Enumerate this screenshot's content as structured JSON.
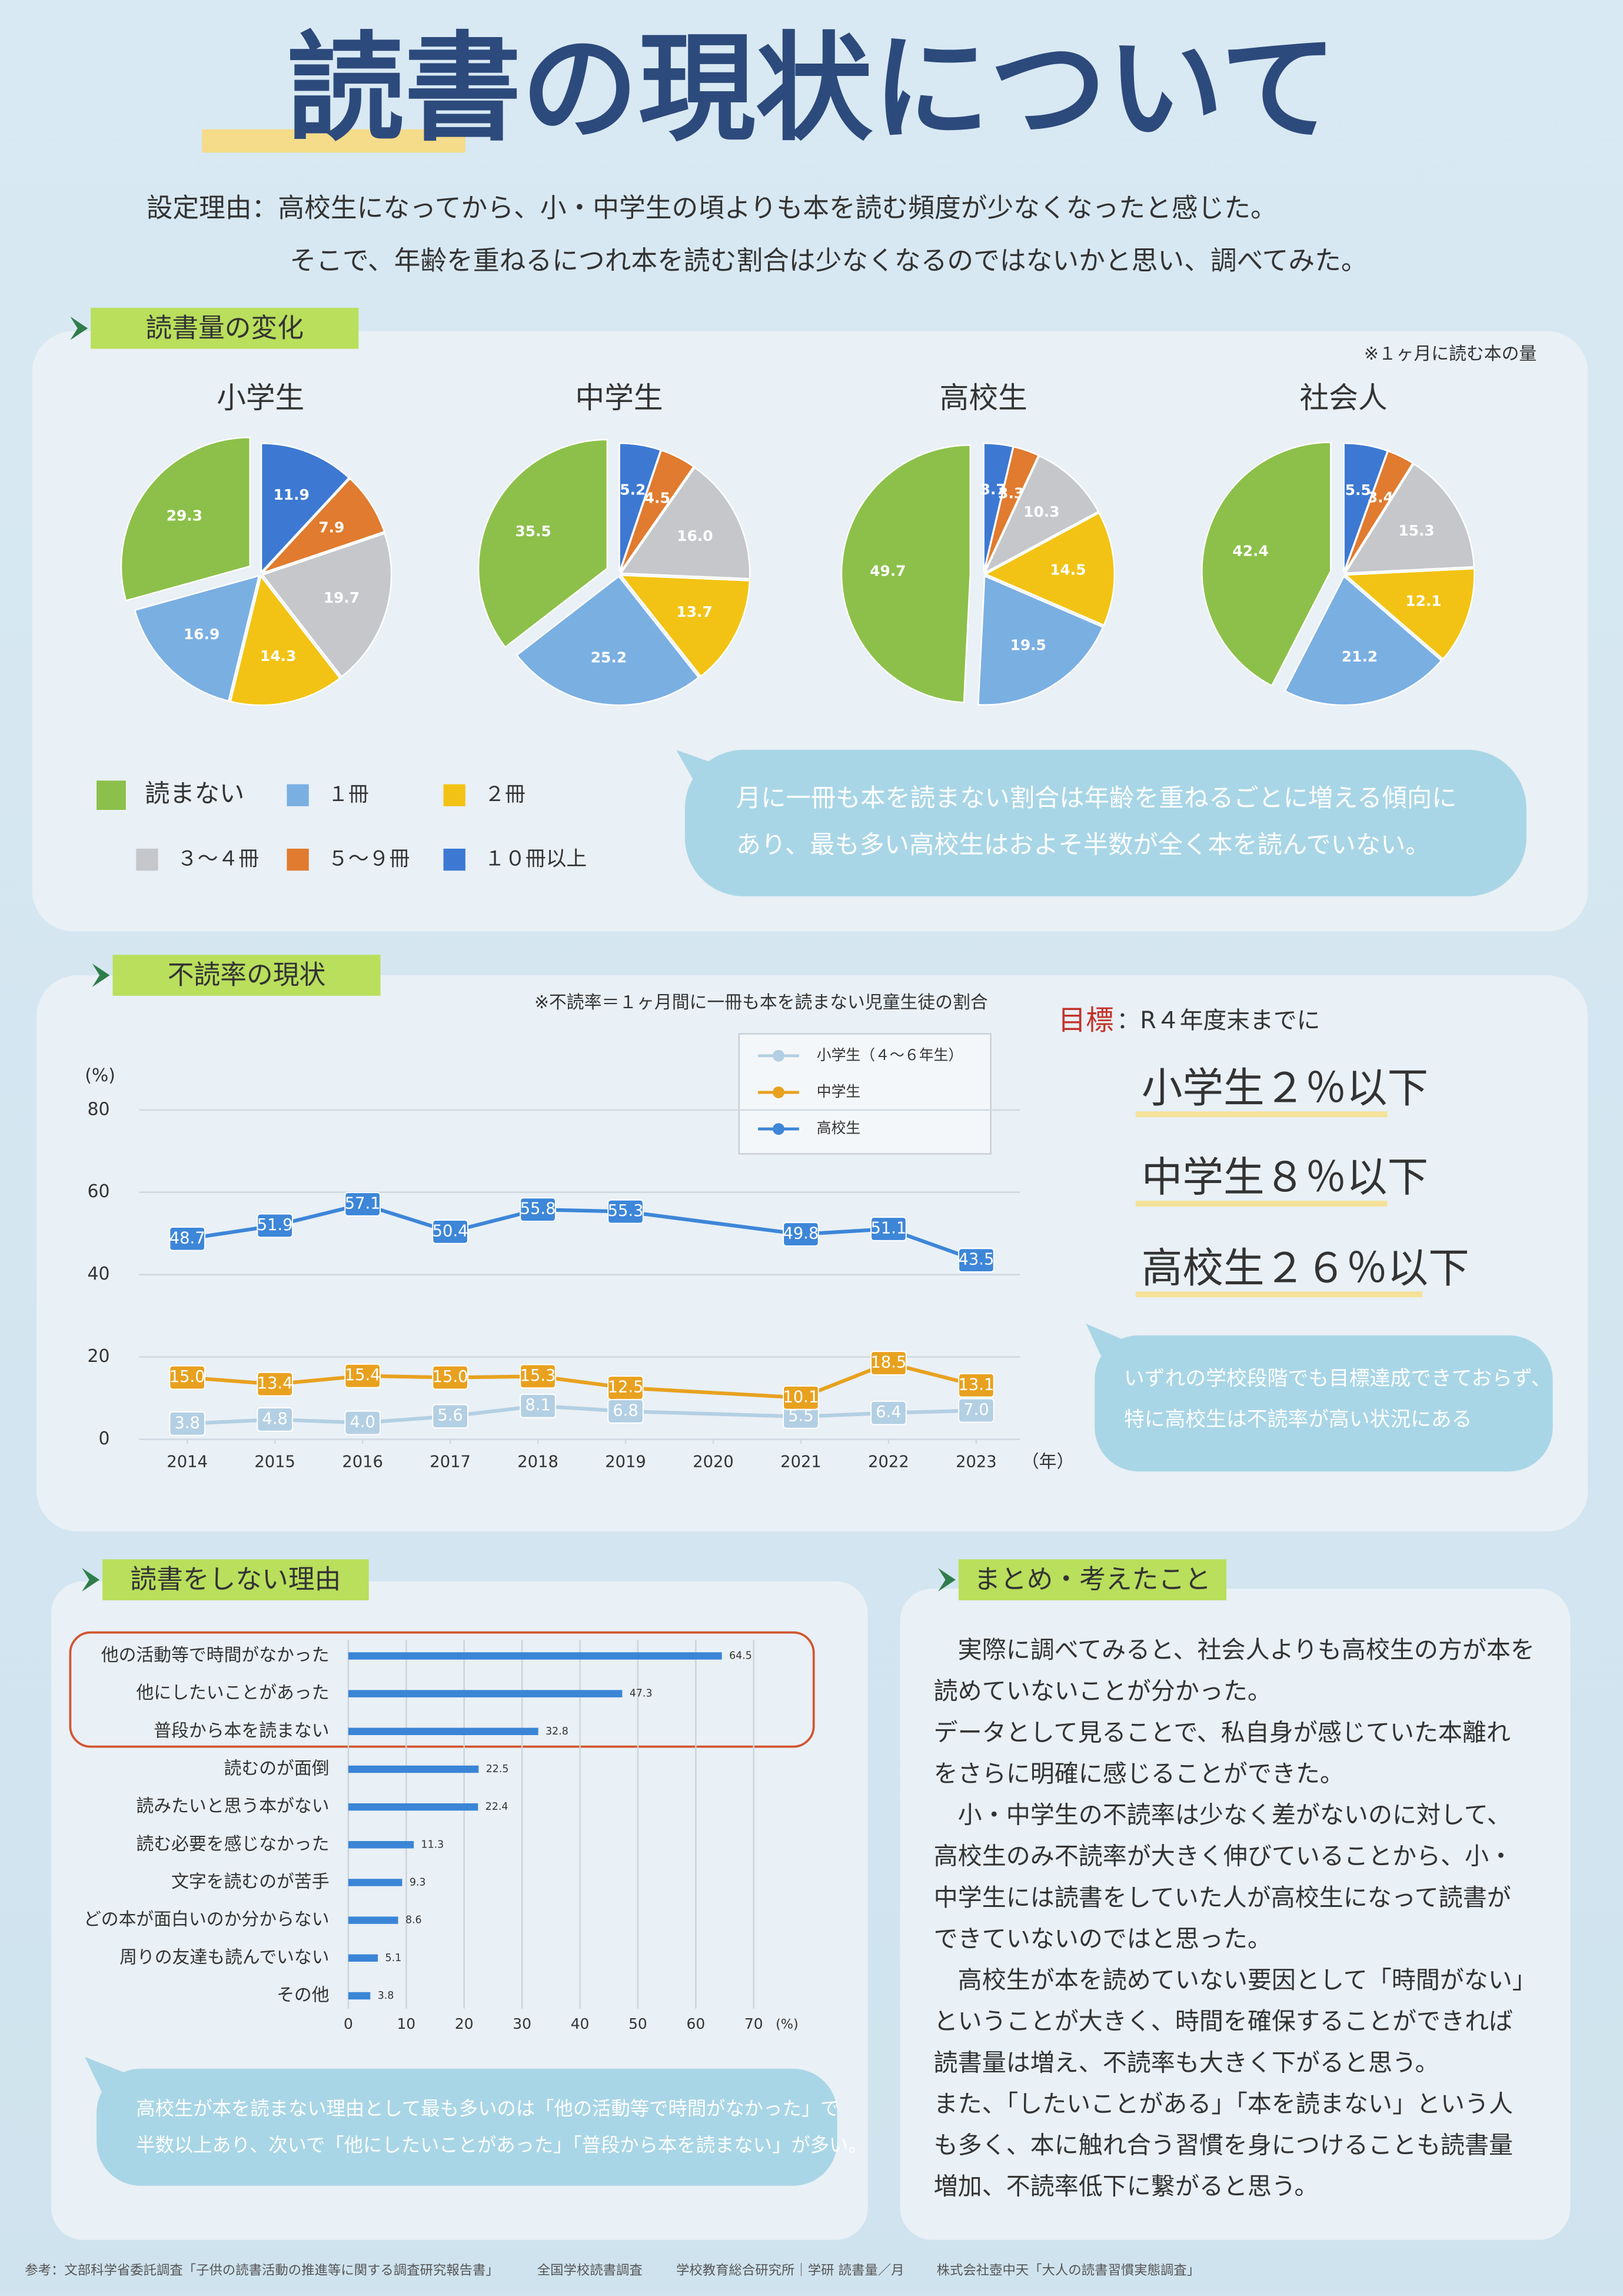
{
  "header": {
    "title": "読書の現状について",
    "reason": [
      "設定理由：高校生になってから、小・中学生の頃よりも本を読む頻度が少なくなったと感じた。",
      "そこで、年齢を重ねるにつれ本を読む割合は少なくなるのではないかと思い、調べてみた。"
    ]
  },
  "chart_data": [
    {
      "type": "pie",
      "section": "読書量の変化",
      "note": "※１ヶ月に読む本の量",
      "categories": [
        "読まない",
        "１冊",
        "２冊",
        "３〜４冊",
        "５〜９冊",
        "１０冊以上"
      ],
      "colors": [
        "#8cc04a",
        "#7aafe2",
        "#f2c314",
        "#c5c7ca",
        "#e07b2f",
        "#3d79d2"
      ],
      "series": [
        {
          "name": "小学生",
          "values": [
            29.3,
            16.9,
            14.3,
            19.7,
            7.9,
            11.9
          ]
        },
        {
          "name": "中学生",
          "values": [
            35.5,
            25.2,
            13.7,
            16,
            4.5,
            5.2
          ],
          "value_labels": [
            "35.5",
            "25.2",
            "13.7",
            "16.0",
            "4.5",
            "5.2"
          ]
        },
        {
          "name": "高校生",
          "values": [
            49.7,
            19.5,
            14.5,
            10.3,
            3.3,
            3.7
          ]
        },
        {
          "name": "社会人",
          "values": [
            42.4,
            21.2,
            12.1,
            15.3,
            3.4,
            5.5
          ]
        }
      ],
      "callout": [
        "月に一冊も本を読まない割合は年齢を重ねるごとに増える傾向に",
        "あり、最も多い高校生はおよそ半数が全く本を読んでいない。"
      ]
    },
    {
      "type": "line",
      "section": "不読率の現状",
      "note": "※不読率＝１ヶ月間に一冊も本を読まない児童生徒の割合",
      "ylabel": "(%)",
      "xlabel": "（年）",
      "x": [
        2014,
        2015,
        2016,
        2017,
        2018,
        2019,
        2021,
        2022,
        2023
      ],
      "xlim": [
        2013.5,
        2023.5
      ],
      "xticks": [
        2014,
        2015,
        2016,
        2017,
        2018,
        2019,
        2020,
        2021,
        2022,
        2023
      ],
      "ylim": [
        0,
        80
      ],
      "yticks": [
        0,
        20,
        40,
        60,
        80
      ],
      "grid": true,
      "series": [
        {
          "name": "小学生（４〜６年生）",
          "color": "#b3cfe3",
          "values": [
            3.8,
            4.8,
            4,
            5.6,
            8.1,
            6.8,
            5.5,
            6.4,
            7
          ],
          "value_labels": [
            "3.8",
            "4.8",
            "4.0",
            "5.6",
            "8.1",
            "6.8",
            "5.5",
            "6.4",
            "7.0"
          ]
        },
        {
          "name": "中学生",
          "color": "#e8a11f",
          "values": [
            15,
            13.4,
            15.4,
            15,
            15.3,
            12.5,
            10.1,
            18.5,
            13.1
          ],
          "value_labels": [
            "15.0",
            "13.4",
            "15.4",
            "15.0",
            "15.3",
            "12.5",
            "10.1",
            "18.5",
            "13.1"
          ]
        },
        {
          "name": "高校生",
          "color": "#3d86d8",
          "values": [
            48.7,
            51.9,
            57.1,
            50.4,
            55.8,
            55.3,
            49.8,
            51.1,
            43.5
          ]
        }
      ],
      "goal": {
        "label": "目標",
        "deadline": "：R４年度末までに",
        "items": [
          "小学生２％以下",
          "中学生８％以下",
          "高校生２６％以下"
        ]
      },
      "callout": [
        "いずれの学校段階でも目標達成できておらず、",
        "特に高校生は不読率が高い状況にある"
      ]
    },
    {
      "type": "hbar",
      "section": "読書をしない理由",
      "xlabel": "(%)",
      "categories": [
        "他の活動等で時間がなかった",
        "他にしたいことがあった",
        "普段から本を読まない",
        "読むのが面倒",
        "読みたいと思う本がない",
        "読む必要を感じなかった",
        "文字を読むのが苦手",
        "どの本が面白いのか分からない",
        "周りの友達も読んでいない",
        "その他"
      ],
      "values": [
        64.5,
        47.3,
        32.8,
        22.5,
        22.4,
        11.3,
        9.3,
        8.6,
        5.1,
        3.8
      ],
      "color": "#3a85d6",
      "xlim": [
        0,
        70
      ],
      "xticks": [
        0,
        10,
        20,
        30,
        40,
        50,
        60,
        70
      ],
      "grid": true,
      "callout": [
        "高校生が本を読まない理由として最も多いのは「他の活動等で時間がなかった」で",
        "半数以上あり、次いで「他にしたいことがあった」「普段から本を読まない」が多い。"
      ]
    }
  ],
  "summary": {
    "title": "まとめ・考えたこと",
    "lines": [
      "　実際に調べてみると、社会人よりも高校生の方が本を",
      "読めていないことが分かった。",
      "データとして見ることで、私自身が感じていた本離れ",
      "をさらに明確に感じることができた。",
      "　小・中学生の不読率は少なく差がないのに対して、",
      "高校生のみ不読率が大きく伸びていることから、小・",
      "中学生には読書をしていた人が高校生になって読書が",
      "できていないのではと思った。",
      "　高校生が本を読めていない要因として「時間がない」",
      "ということが大きく、時間を確保することができれば",
      "読書量は増え、不読率も大きく下がると思う。",
      "また、「したいことがある」「本を読まない」という人",
      "も多く、本に触れ合う習慣を身につけることも読書量",
      "増加、不読率低下に繋がると思う。"
    ]
  },
  "footer": [
    "参考：文部科学省委託調査「子供の読書活動の推進等に関する調査研究報告書」",
    "全国学校読書調査",
    "学校教育総合研究所｜学研 読書量／月",
    "株式会社壺中天「大人の読書習慣実態調査」"
  ]
}
